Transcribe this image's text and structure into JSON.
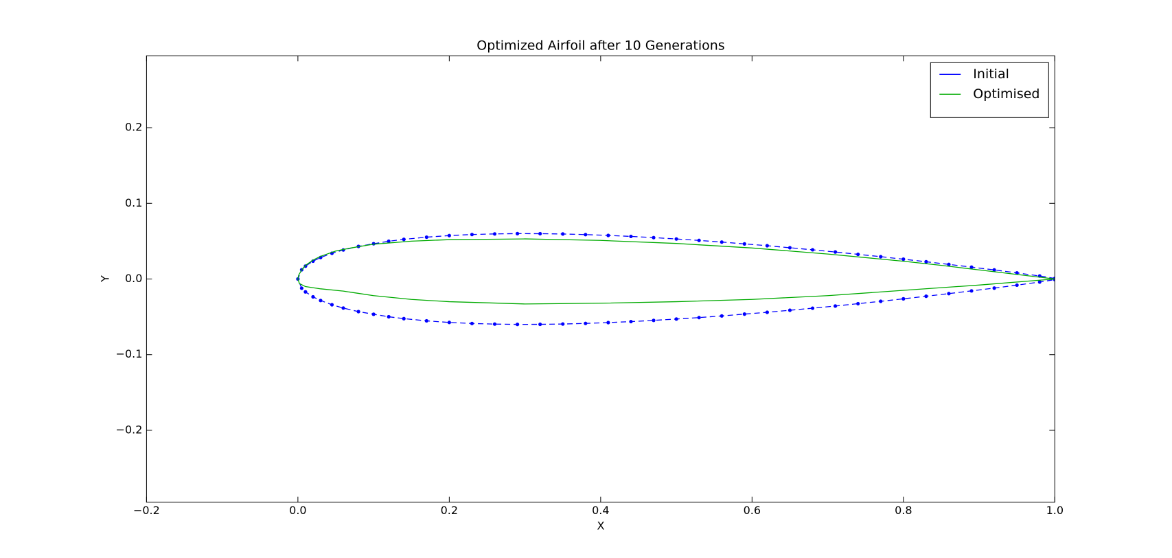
{
  "chart_data": {
    "type": "line",
    "title": "Optimized Airfoil after 10 Generations",
    "x_label": "X",
    "y_label": "Y",
    "xlim": [
      -0.2,
      1.0
    ],
    "ylim": [
      -0.295,
      0.295
    ],
    "xticks": [
      {
        "value": -0.2,
        "label": "−0.2"
      },
      {
        "value": 0.0,
        "label": "0.0"
      },
      0.2,
      0.4,
      0.6,
      0.8,
      {
        "value": 1.0,
        "label": "1.0"
      }
    ],
    "yticks": [
      {
        "value": -0.2,
        "label": "−0.2"
      },
      {
        "value": -0.1,
        "label": "−0.1"
      },
      {
        "value": 0.0,
        "label": "0.0"
      },
      0.1,
      0.2
    ],
    "grid": false,
    "legend": "upper right",
    "series": [
      {
        "name": "Initial",
        "color": "#0000ff",
        "linestyle": "dashed",
        "marker": "o",
        "x": [
          1.0,
          0.98,
          0.95,
          0.92,
          0.89,
          0.86,
          0.83,
          0.8,
          0.77,
          0.74,
          0.71,
          0.68,
          0.65,
          0.62,
          0.59,
          0.56,
          0.53,
          0.5,
          0.47,
          0.44,
          0.41,
          0.38,
          0.35,
          0.32,
          0.29,
          0.26,
          0.23,
          0.2,
          0.17,
          0.14,
          0.12,
          0.1,
          0.08,
          0.06,
          0.045,
          0.03,
          0.02,
          0.01,
          0.005,
          0.0,
          0.005,
          0.01,
          0.02,
          0.03,
          0.045,
          0.06,
          0.08,
          0.1,
          0.12,
          0.14,
          0.17,
          0.2,
          0.23,
          0.26,
          0.29,
          0.32,
          0.35,
          0.38,
          0.41,
          0.44,
          0.47,
          0.5,
          0.53,
          0.56,
          0.59,
          0.62,
          0.65,
          0.68,
          0.71,
          0.74,
          0.77,
          0.8,
          0.83,
          0.86,
          0.89,
          0.92,
          0.95,
          0.98,
          1.0
        ],
        "values": [
          0.0008,
          0.004,
          0.0081,
          0.012,
          0.0157,
          0.0193,
          0.0228,
          0.0262,
          0.0295,
          0.0326,
          0.0357,
          0.0386,
          0.0413,
          0.044,
          0.0464,
          0.0488,
          0.051,
          0.0529,
          0.0547,
          0.0563,
          0.0576,
          0.0587,
          0.0595,
          0.0599,
          0.06,
          0.0596,
          0.0588,
          0.0574,
          0.0553,
          0.0524,
          0.0499,
          0.0466,
          0.0431,
          0.0384,
          0.034,
          0.0284,
          0.0236,
          0.017,
          0.0122,
          0.0,
          -0.0122,
          -0.017,
          -0.0236,
          -0.0284,
          -0.034,
          -0.0384,
          -0.0431,
          -0.0466,
          -0.0499,
          -0.0524,
          -0.0553,
          -0.0574,
          -0.0588,
          -0.0596,
          -0.06,
          -0.0599,
          -0.0595,
          -0.0587,
          -0.0576,
          -0.0563,
          -0.0547,
          -0.0529,
          -0.051,
          -0.0488,
          -0.0464,
          -0.044,
          -0.0413,
          -0.0386,
          -0.0357,
          -0.0326,
          -0.0295,
          -0.0262,
          -0.0228,
          -0.0193,
          -0.0157,
          -0.012,
          -0.0081,
          -0.004,
          -0.0008
        ]
      },
      {
        "name": "Optimised",
        "color": "#00aa00",
        "linestyle": "solid",
        "x": [
          1.0,
          0.95,
          0.9,
          0.85,
          0.8,
          0.7,
          0.6,
          0.5,
          0.4,
          0.3,
          0.2,
          0.15,
          0.1,
          0.07,
          0.05,
          0.03,
          0.02,
          0.01,
          0.005,
          0.001,
          0.0,
          0.002,
          0.01,
          0.03,
          0.06,
          0.08,
          0.1,
          0.15,
          0.2,
          0.3,
          0.4,
          0.5,
          0.6,
          0.7,
          0.8,
          0.9,
          1.0
        ],
        "values": [
          0.0,
          0.006,
          0.012,
          0.018,
          0.0235,
          0.033,
          0.041,
          0.047,
          0.051,
          0.053,
          0.052,
          0.05,
          0.046,
          0.041,
          0.037,
          0.03,
          0.025,
          0.018,
          0.012,
          0.005,
          0.0,
          -0.006,
          -0.01,
          -0.013,
          -0.016,
          -0.019,
          -0.022,
          -0.027,
          -0.03,
          -0.033,
          -0.032,
          -0.03,
          -0.027,
          -0.022,
          -0.015,
          -0.008,
          0.0
        ]
      }
    ]
  }
}
